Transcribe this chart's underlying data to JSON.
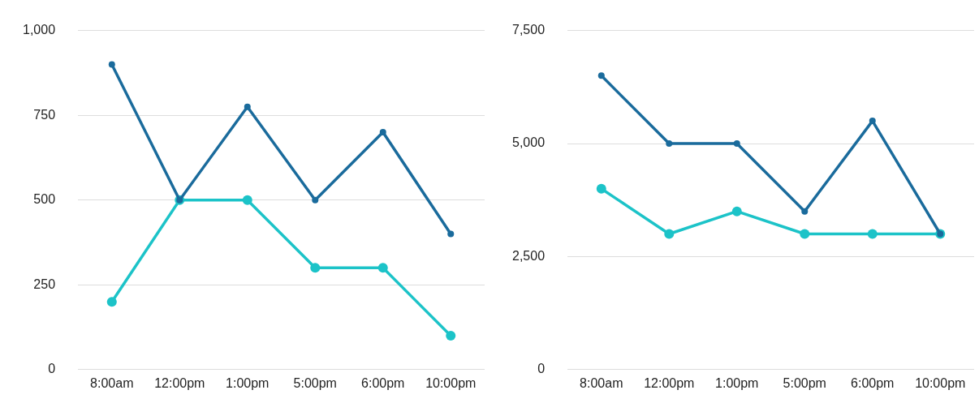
{
  "chart_data": [
    {
      "type": "line",
      "categories": [
        "8:00am",
        "12:00pm",
        "1:00pm",
        "5:00pm",
        "6:00pm",
        "10:00pm"
      ],
      "ylim": [
        0,
        1000
      ],
      "yticks": [
        0,
        250,
        500,
        750,
        {
          "value": 1000,
          "label": "1,000"
        }
      ],
      "grid": "y",
      "marker": "circle",
      "series": [
        {
          "color": "#1a6b9c",
          "values": [
            900,
            500,
            775,
            500,
            700,
            400
          ]
        },
        {
          "color": "#1cc3c8",
          "values": [
            200,
            500,
            500,
            300,
            300,
            100
          ]
        }
      ]
    },
    {
      "type": "line",
      "categories": [
        "8:00am",
        "12:00pm",
        "1:00pm",
        "5:00pm",
        "6:00pm",
        "10:00pm"
      ],
      "ylim": [
        0,
        7500
      ],
      "yticks": [
        0,
        {
          "value": 2500,
          "label": "2,500"
        },
        {
          "value": 5000,
          "label": "5,000"
        },
        {
          "value": 7500,
          "label": "7,500"
        }
      ],
      "grid": "y",
      "marker": "circle",
      "series": [
        {
          "color": "#1a6b9c",
          "values": [
            6500,
            5000,
            5000,
            3500,
            5500,
            3000
          ]
        },
        {
          "color": "#1cc3c8",
          "values": [
            4000,
            3000,
            3500,
            3000,
            3000,
            3000
          ]
        }
      ]
    }
  ]
}
